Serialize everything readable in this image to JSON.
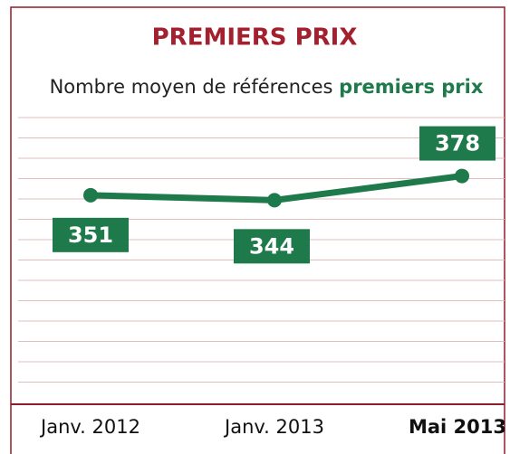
{
  "chart_data": {
    "type": "line",
    "title": "PREMIERS PRIX",
    "subtitle": "Nombre moyen de références",
    "subtitle_highlight": "premiers prix",
    "categories": [
      "Janv. 2012",
      "Janv. 2013",
      "Mai 2013"
    ],
    "series": [
      {
        "name": "premiers prix",
        "color": "#1f7a4b",
        "values": [
          351,
          344,
          378
        ]
      }
    ],
    "ylim": [
      60,
      460
    ],
    "title_color": "#a3202f",
    "frame_color": "#8f1d2a"
  }
}
